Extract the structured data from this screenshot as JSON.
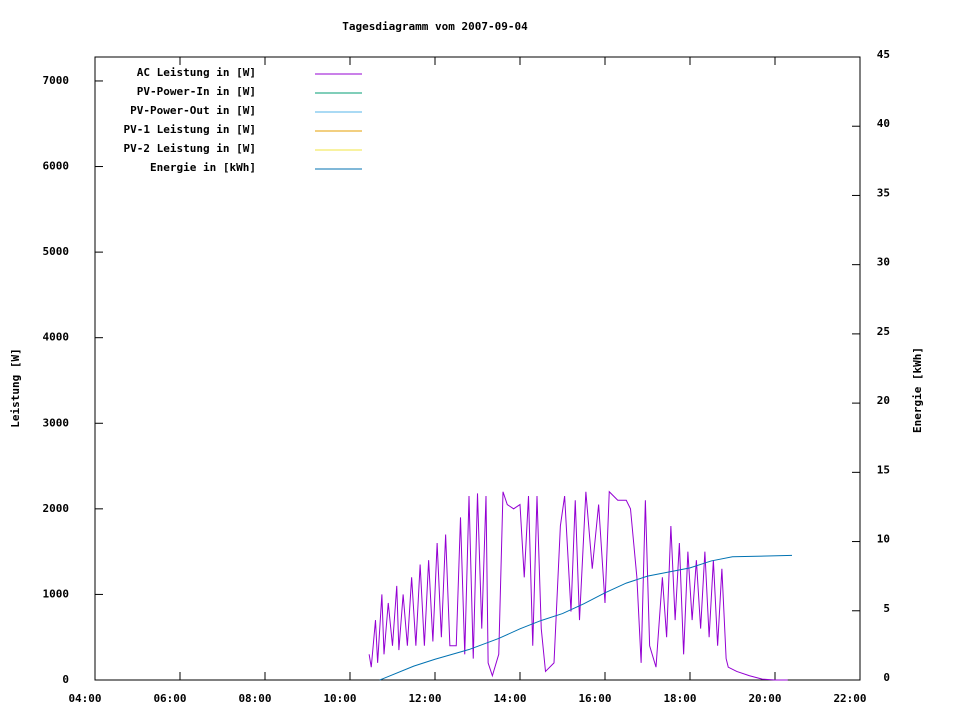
{
  "chart_data": {
    "type": "line",
    "title": "Tagesdiagramm vom 2007-09-04",
    "y_label": "Leistung [W]",
    "y2_label": "Energie [kWh]",
    "xlim": [
      4,
      22
    ],
    "xticks": [
      {
        "value": 4,
        "label": "04:00"
      },
      {
        "value": 6,
        "label": "06:00"
      },
      {
        "value": 8,
        "label": "08:00"
      },
      {
        "value": 10,
        "label": "10:00"
      },
      {
        "value": 12,
        "label": "12:00"
      },
      {
        "value": 14,
        "label": "14:00"
      },
      {
        "value": 16,
        "label": "16:00"
      },
      {
        "value": 18,
        "label": "18:00"
      },
      {
        "value": 20,
        "label": "20:00"
      },
      {
        "value": 22,
        "label": "22:00"
      }
    ],
    "ylim": [
      0,
      7280
    ],
    "yticks": [
      0,
      1000,
      2000,
      3000,
      4000,
      5000,
      6000,
      7000
    ],
    "y2lim": [
      0,
      45
    ],
    "y2ticks": [
      0,
      5,
      10,
      15,
      20,
      25,
      30,
      35,
      40,
      45
    ],
    "legend": "top-left",
    "series": [
      {
        "name": "AC Leistung in [W]",
        "color": "#9400d3",
        "x": [
          10.45,
          10.5,
          10.6,
          10.65,
          10.75,
          10.8,
          10.9,
          11.0,
          11.1,
          11.15,
          11.25,
          11.35,
          11.45,
          11.55,
          11.65,
          11.75,
          11.85,
          11.95,
          12.05,
          12.15,
          12.25,
          12.35,
          12.5,
          12.6,
          12.7,
          12.8,
          12.9,
          13.0,
          13.1,
          13.2,
          13.25,
          13.35,
          13.5,
          13.6,
          13.7,
          13.85,
          14.0,
          14.1,
          14.2,
          14.3,
          14.4,
          14.5,
          14.6,
          14.8,
          14.95,
          15.05,
          15.2,
          15.3,
          15.4,
          15.55,
          15.7,
          15.85,
          16.0,
          16.1,
          16.3,
          16.5,
          16.6,
          16.75,
          16.85,
          16.95,
          17.05,
          17.2,
          17.35,
          17.45,
          17.55,
          17.65,
          17.75,
          17.85,
          17.95,
          18.05,
          18.15,
          18.25,
          18.35,
          18.45,
          18.55,
          18.65,
          18.75,
          18.85,
          18.9,
          19.1,
          19.4,
          19.7,
          20.0,
          20.3
        ],
        "values": [
          300,
          150,
          700,
          200,
          1000,
          300,
          900,
          400,
          1100,
          350,
          1000,
          400,
          1200,
          400,
          1350,
          400,
          1400,
          450,
          1600,
          500,
          1700,
          400,
          400,
          1900,
          300,
          2150,
          250,
          2180,
          600,
          2150,
          200,
          50,
          300,
          2200,
          2050,
          2000,
          2050,
          1200,
          2150,
          400,
          2150,
          600,
          100,
          200,
          1800,
          2150,
          800,
          2100,
          700,
          2200,
          1300,
          2050,
          900,
          2200,
          2100,
          2100,
          2000,
          1200,
          200,
          2100,
          400,
          150,
          1200,
          500,
          1800,
          700,
          1600,
          300,
          1500,
          700,
          1400,
          600,
          1500,
          500,
          1400,
          400,
          1300,
          250,
          150,
          100,
          50,
          10,
          0,
          0
        ]
      },
      {
        "name": "PV-Power-In in [W]",
        "color": "#009e73",
        "x": [],
        "values": []
      },
      {
        "name": "PV-Power-Out in [W]",
        "color": "#56b4e9",
        "x": [],
        "values": []
      },
      {
        "name": "PV-1 Leistung in [W]",
        "color": "#e69f00",
        "x": [],
        "values": []
      },
      {
        "name": "PV-2 Leistung in [W]",
        "color": "#f0e442",
        "x": [],
        "values": []
      },
      {
        "name": "Energie in [kWh]",
        "color": "#0072b2",
        "axis": "y2",
        "x": [
          10.7,
          11.5,
          12.0,
          12.8,
          13.5,
          14.0,
          14.5,
          15.0,
          15.5,
          16.0,
          16.5,
          17.0,
          17.5,
          18.0,
          18.5,
          19.0,
          20.4
        ],
        "values": [
          0,
          1.0,
          1.5,
          2.2,
          3.0,
          3.7,
          4.3,
          4.8,
          5.5,
          6.3,
          7.0,
          7.5,
          7.8,
          8.1,
          8.6,
          8.9,
          9.0
        ]
      }
    ]
  }
}
